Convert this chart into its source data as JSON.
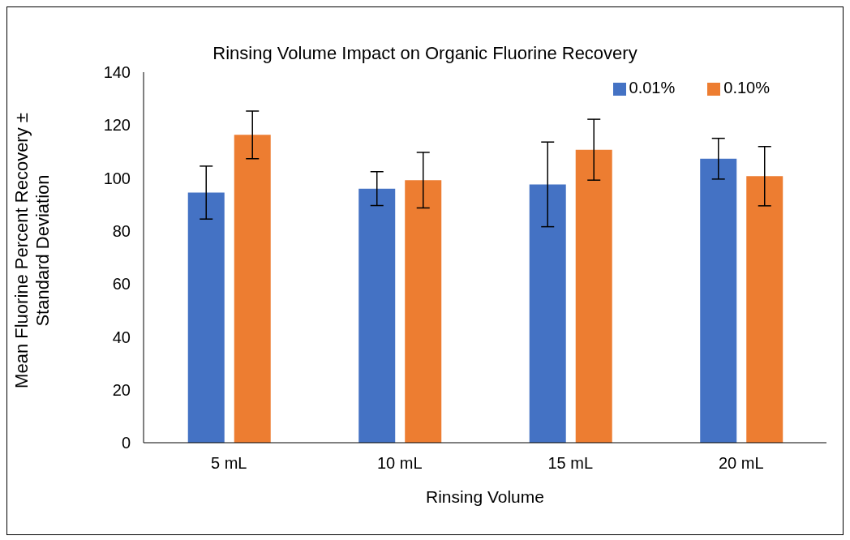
{
  "chart_data": {
    "type": "bar",
    "title": "Rinsing Volume Impact on Organic Fluorine Recovery",
    "xlabel": "Rinsing Volume",
    "ylabel": "Mean Fluorine Percent Recovery ± Standard Deviation",
    "categories": [
      "5 mL",
      "10 mL",
      "15 mL",
      "20 mL"
    ],
    "series": [
      {
        "name": "0.01%",
        "color": "#4472c4",
        "values": [
          94.5,
          96,
          97.6,
          107.3
        ],
        "errors": [
          10,
          6.4,
          16,
          7.7
        ]
      },
      {
        "name": "0.10%",
        "color": "#ed7d31",
        "values": [
          116.3,
          99.2,
          110.7,
          100.7
        ],
        "errors": [
          9,
          10.5,
          11.5,
          11.2
        ]
      }
    ],
    "ylim": [
      0,
      140
    ],
    "yticks": [
      0,
      20,
      40,
      60,
      80,
      100,
      120,
      140
    ],
    "grid": false,
    "legend": "top right"
  }
}
